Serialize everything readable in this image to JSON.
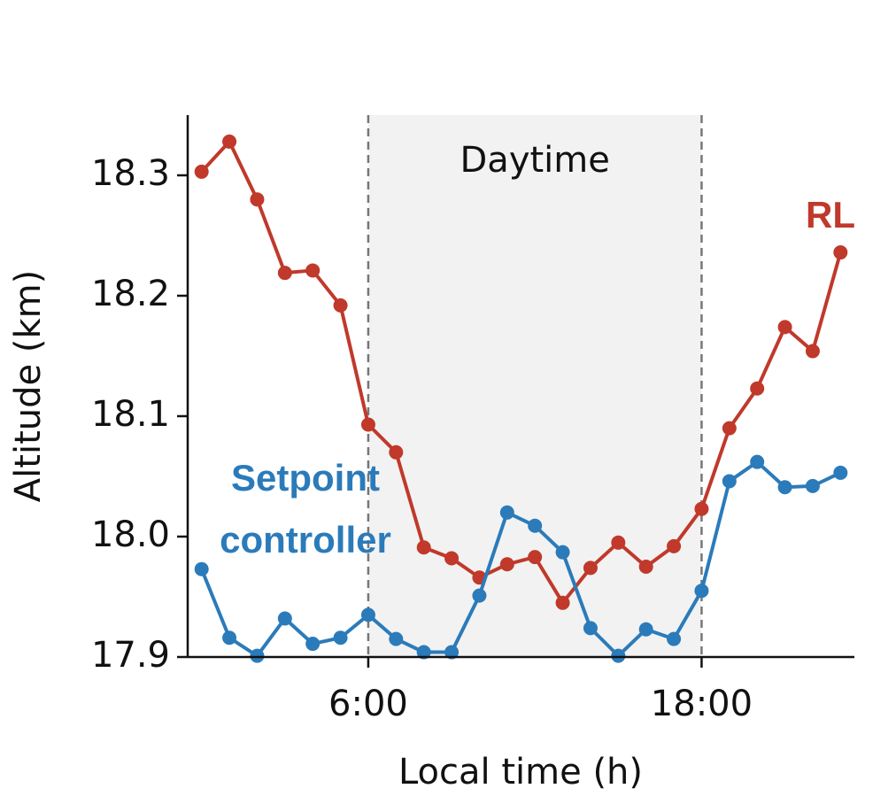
{
  "chart_data": {
    "type": "line",
    "x": [
      0,
      1,
      2,
      3,
      4,
      5,
      6,
      7,
      8,
      9,
      10,
      11,
      12,
      13,
      14,
      15,
      16,
      17,
      18,
      19,
      20,
      21,
      22,
      23
    ],
    "series": [
      {
        "name": "RL",
        "color": "#c0392b",
        "values": [
          18.303,
          18.328,
          18.28,
          18.219,
          18.221,
          18.192,
          18.093,
          18.07,
          17.991,
          17.982,
          17.966,
          17.977,
          17.983,
          17.945,
          17.974,
          17.995,
          17.975,
          17.992,
          18.023,
          18.09,
          18.123,
          18.174,
          18.154,
          18.236
        ]
      },
      {
        "name": "Setpoint controller",
        "color": "#2b7bba",
        "values": [
          17.973,
          17.916,
          17.901,
          17.932,
          17.911,
          17.916,
          17.935,
          17.915,
          17.904,
          17.904,
          17.951,
          18.02,
          18.009,
          17.987,
          17.924,
          17.901,
          17.923,
          17.915,
          17.955,
          18.046,
          18.062,
          18.041,
          18.042,
          18.053
        ]
      }
    ],
    "xlim": [
      -0.5,
      23.5
    ],
    "xticks": [
      {
        "value": 6,
        "label": "6:00"
      },
      {
        "value": 18,
        "label": "18:00"
      }
    ],
    "ylim": [
      17.9,
      18.35
    ],
    "yticks": [
      17.9,
      {
        "value": 18,
        "label": "18.0"
      },
      18.1,
      18.2,
      18.3
    ],
    "xlabel": "Local time (h)",
    "ylabel": "Altitude (km)",
    "shaded_region": {
      "x": [
        6,
        18
      ],
      "label": "Daytime"
    }
  }
}
